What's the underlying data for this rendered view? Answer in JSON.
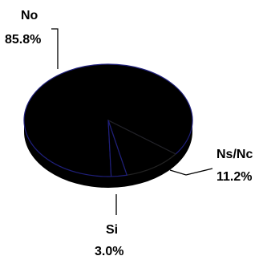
{
  "chart_data": {
    "type": "pie",
    "style": "3d",
    "categories": [
      "No",
      "Ns/Nc",
      "Si"
    ],
    "values": [
      85.8,
      11.2,
      3.0
    ],
    "value_labels": [
      "85.8%",
      "11.2%",
      "3.0%"
    ],
    "slice_colors": [
      "#000000",
      "#000000",
      "#000000"
    ],
    "separator_colors": [
      "#1f1f7a",
      "#222222",
      "#1f1f7a"
    ],
    "title": "",
    "legend": "none"
  }
}
